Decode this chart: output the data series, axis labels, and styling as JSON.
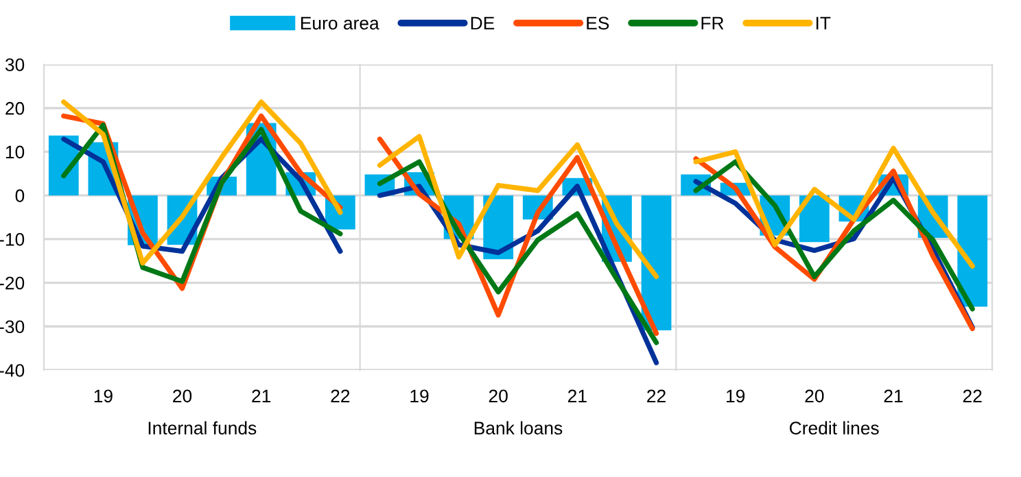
{
  "chart_data": [
    {
      "type": "bar",
      "xlabel": "Internal funds",
      "categories": [
        null,
        "19",
        null,
        "20",
        null,
        "21",
        null,
        "22"
      ],
      "ylim": [
        -40,
        30
      ],
      "yticks": [
        -40,
        -30,
        -20,
        -10,
        0,
        10,
        20,
        30
      ],
      "grid": "y",
      "legend": "top",
      "series": [
        {
          "name": "Euro area",
          "color": "#00b1ea",
          "values": [
            13.7,
            12.2,
            -11.4,
            -11.3,
            4.3,
            16.6,
            5.3,
            -7.8
          ]
        },
        {
          "name": "DE",
          "type": "line",
          "color": "#003299",
          "values": [
            12.9,
            7.7,
            -11.6,
            -12.8,
            4.0,
            12.9,
            3.5,
            -12.8
          ]
        },
        {
          "name": "ES",
          "type": "line",
          "color": "#ff4b00",
          "values": [
            18.2,
            16.4,
            -8.6,
            -21.3,
            2.9,
            18.2,
            5.1,
            -2.8
          ]
        },
        {
          "name": "FR",
          "type": "line",
          "color": "#007816",
          "values": [
            4.5,
            16.1,
            -16.5,
            -19.7,
            2.9,
            15.1,
            -3.6,
            -8.8
          ]
        },
        {
          "name": "IT",
          "type": "line",
          "color": "#ffb400",
          "values": [
            21.4,
            14.0,
            -15.5,
            -4.9,
            8.7,
            21.4,
            11.9,
            -3.9
          ]
        }
      ]
    },
    {
      "type": "bar",
      "xlabel": "Bank loans",
      "categories": [
        null,
        "19",
        null,
        "20",
        null,
        "21",
        null,
        "22"
      ],
      "ylim": [
        -40,
        30
      ],
      "yticks": [
        -40,
        -30,
        -20,
        -10,
        0,
        10,
        20,
        30
      ],
      "grid": "y",
      "tick_labels": "x",
      "series": [
        {
          "color": "#00b1ea",
          "values": [
            4.8,
            5.3,
            -10.0,
            -14.6,
            -5.5,
            4.0,
            -15.2,
            -30.9
          ]
        },
        {
          "type": "line",
          "color": "#003299",
          "values": [
            0.0,
            2.1,
            -11.3,
            -13.1,
            -8.1,
            2.1,
            -18.1,
            -38.3
          ]
        },
        {
          "type": "line",
          "color": "#ff4b00",
          "values": [
            12.9,
            0.3,
            -6.5,
            -27.4,
            -3.9,
            8.7,
            -11.8,
            -31.6
          ]
        },
        {
          "type": "line",
          "color": "#007816",
          "values": [
            2.7,
            7.7,
            -8.6,
            -22.1,
            -10.2,
            -4.2,
            -19.2,
            -33.7
          ]
        },
        {
          "type": "line",
          "color": "#ffb400",
          "values": [
            6.9,
            13.5,
            -14.1,
            2.3,
            1.1,
            11.6,
            -6.5,
            -18.6
          ]
        }
      ]
    },
    {
      "type": "bar",
      "xlabel": "Credit lines",
      "categories": [
        null,
        "19",
        null,
        "20",
        null,
        "21",
        null,
        "22"
      ],
      "ylim": [
        -40,
        30
      ],
      "yticks": [
        -40,
        -30,
        -20,
        -10,
        0,
        10,
        20,
        30
      ],
      "grid": "y",
      "tick_labels": "x",
      "series": [
        {
          "color": "#00b1ea",
          "values": [
            4.8,
            2.9,
            -9.2,
            -10.7,
            -6.0,
            4.8,
            -9.7,
            -25.5
          ]
        },
        {
          "type": "line",
          "color": "#003299",
          "values": [
            3.2,
            -1.8,
            -10.2,
            -12.6,
            -9.9,
            4.0,
            -12.3,
            -30.2
          ]
        },
        {
          "type": "line",
          "color": "#ff4b00",
          "values": [
            8.4,
            1.7,
            -11.8,
            -19.2,
            -5.5,
            5.6,
            -13.9,
            -30.5
          ]
        },
        {
          "type": "line",
          "color": "#007816",
          "values": [
            1.1,
            7.7,
            -2.3,
            -18.6,
            -8.1,
            -1.1,
            -10.2,
            -26.0
          ]
        },
        {
          "type": "line",
          "color": "#ffb400",
          "values": [
            7.7,
            10.0,
            -11.3,
            1.4,
            -5.5,
            10.8,
            -3.9,
            -16.2
          ]
        }
      ]
    }
  ]
}
